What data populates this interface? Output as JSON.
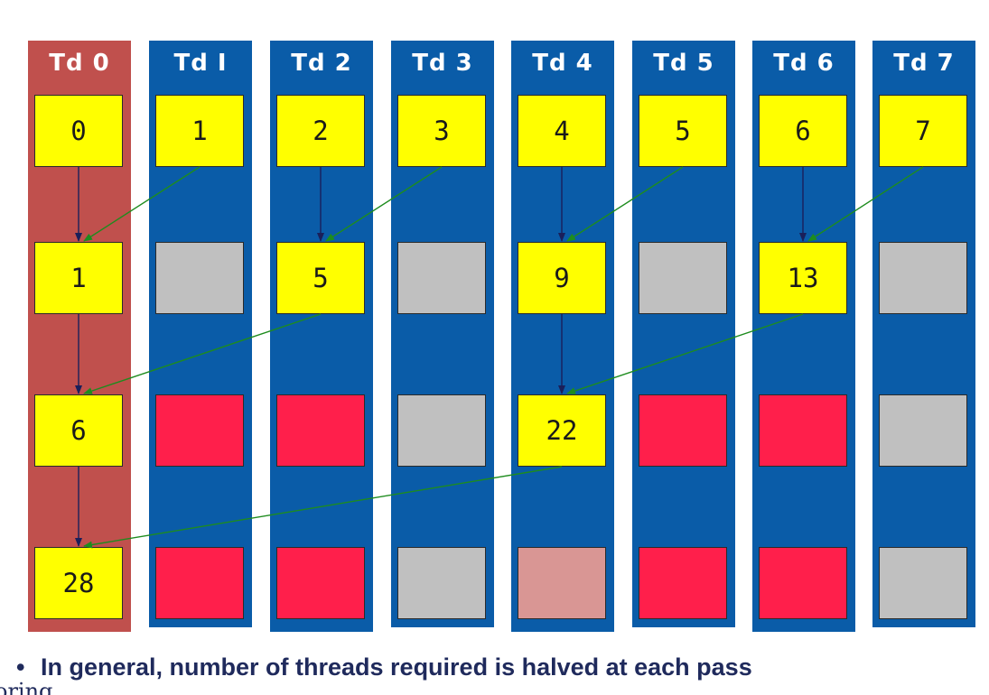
{
  "threads": [
    "Td 0",
    "Td I",
    "Td 2",
    "Td 3",
    "Td 4",
    "Td 5",
    "Td 6",
    "Td 7"
  ],
  "rows": [
    [
      "0",
      "1",
      "2",
      "3",
      "4",
      "5",
      "6",
      "7"
    ],
    [
      "1",
      "",
      "5",
      "",
      "9",
      "",
      "13",
      ""
    ],
    [
      "6",
      "",
      "",
      "",
      "22",
      "",
      "",
      ""
    ],
    [
      "28",
      "",
      "",
      "",
      "",
      "",
      "",
      ""
    ]
  ],
  "cell_states": [
    [
      "value",
      "value",
      "value",
      "value",
      "value",
      "value",
      "value",
      "value"
    ],
    [
      "value",
      "inactive",
      "value",
      "inactive",
      "value",
      "inactive",
      "value",
      "inactive"
    ],
    [
      "value",
      "idle",
      "idle",
      "inactive",
      "value",
      "idle",
      "idle",
      "inactive"
    ],
    [
      "value",
      "idle",
      "idle",
      "inactive",
      "faded",
      "idle",
      "idle",
      "inactive"
    ]
  ],
  "colors": {
    "thread_column": "#0a5ca8",
    "highlight_column": "#c0504d",
    "value_cell": "#ffff00",
    "inactive_cell": "#c0c0c0",
    "idle_cell": "#ff1f4b",
    "faded_cell": "#d99694",
    "same_thread_arrow": "#1a1f5a",
    "cross_thread_arrow": "#1e8c1e"
  },
  "caption": {
    "bullet": "•",
    "text": "In general, number of threads required is halved at each pass"
  },
  "edge_fragment": "oring"
}
